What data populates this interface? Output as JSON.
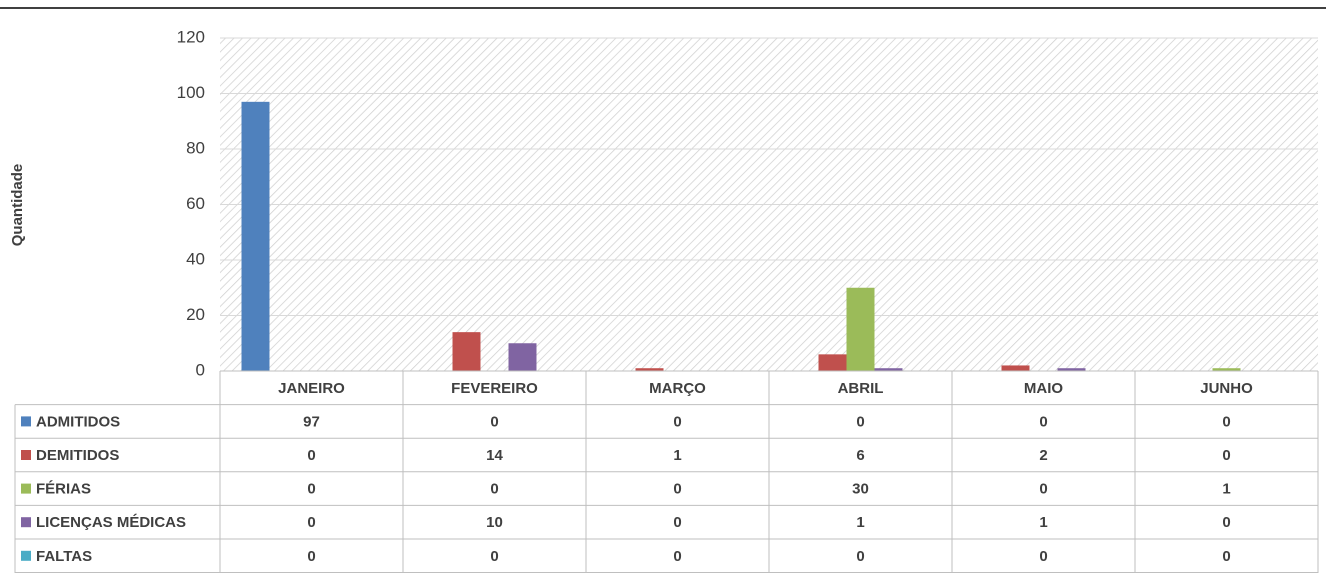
{
  "chart_data": {
    "type": "bar",
    "y_label": "Quantidade",
    "categories": [
      "JANEIRO",
      "FEVEREIRO",
      "MARÇO",
      "ABRIL",
      "MAIO",
      "JUNHO"
    ],
    "series": [
      {
        "name": "ADMITIDOS",
        "color": "#4f81bd",
        "values": [
          97,
          0,
          0,
          0,
          0,
          0
        ]
      },
      {
        "name": "DEMITIDOS",
        "color": "#c0504d",
        "values": [
          0,
          14,
          1,
          6,
          2,
          0
        ]
      },
      {
        "name": "FÉRIAS",
        "color": "#9bbb59",
        "values": [
          0,
          0,
          0,
          30,
          0,
          1
        ]
      },
      {
        "name": "LICENÇAS MÉDICAS",
        "color": "#8064a2",
        "values": [
          0,
          10,
          0,
          1,
          1,
          0
        ]
      },
      {
        "name": "FALTAS",
        "color": "#4bacc6",
        "values": [
          0,
          0,
          0,
          0,
          0,
          0
        ]
      }
    ],
    "ylim": [
      0,
      120
    ],
    "yticks": [
      0,
      20,
      40,
      60,
      80,
      100,
      120
    ],
    "grid": true,
    "data_table": true
  }
}
